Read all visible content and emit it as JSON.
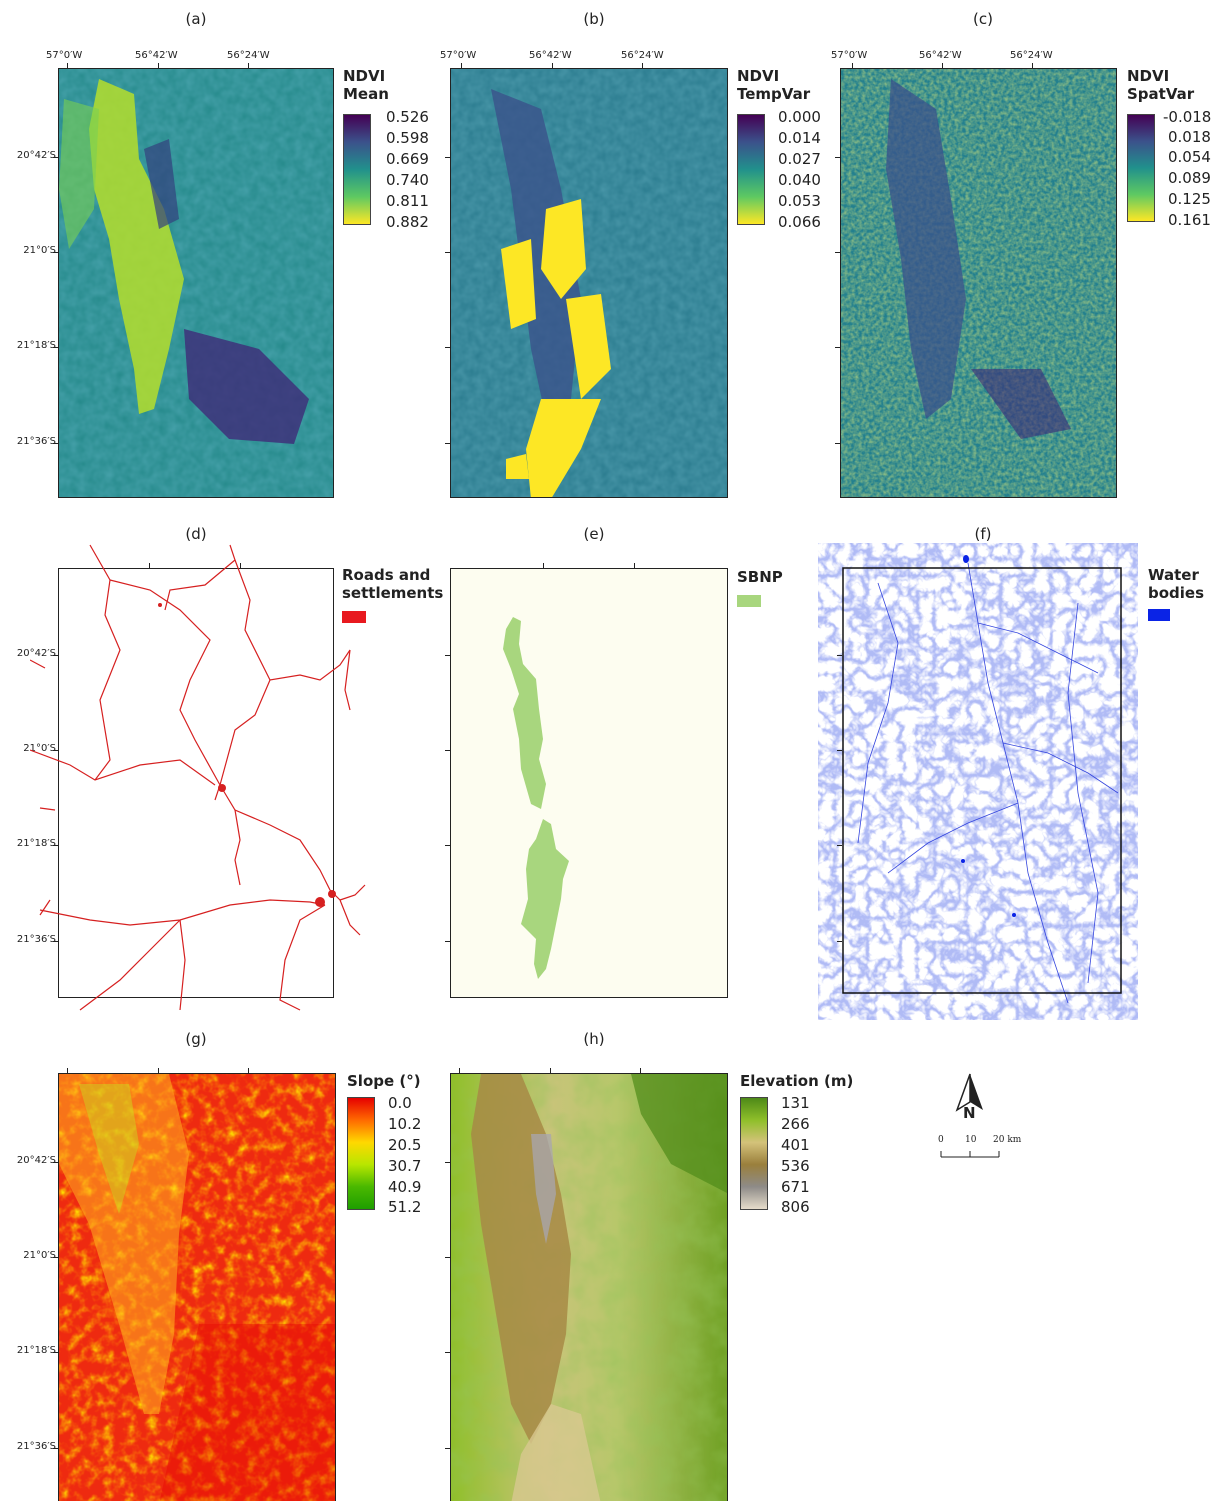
{
  "panels": {
    "a": {
      "label": "(a)",
      "legend_title": [
        "NDVI",
        "Mean"
      ],
      "ticks": [
        "0.526",
        "0.598",
        "0.669",
        "0.740",
        "0.811",
        "0.882"
      ]
    },
    "b": {
      "label": "(b)",
      "legend_title": [
        "NDVI",
        "TempVar"
      ],
      "ticks": [
        "0.000",
        "0.014",
        "0.027",
        "0.040",
        "0.053",
        "0.066"
      ]
    },
    "c": {
      "label": "(c)",
      "legend_title": [
        "NDVI",
        "SpatVar"
      ],
      "ticks": [
        "-0.018",
        "0.018",
        "0.054",
        "0.089",
        "0.125",
        "0.161"
      ]
    },
    "d": {
      "label": "(d)",
      "legend_title": [
        "Roads and",
        "settlements"
      ],
      "swatch_color": "#e8191f"
    },
    "e": {
      "label": "(e)",
      "legend_title": [
        "SBNP"
      ],
      "swatch_color": "#a8d67e"
    },
    "f": {
      "label": "(f)",
      "legend_title": [
        "Water",
        "bodies"
      ],
      "swatch_color": "#0a23e6"
    },
    "g": {
      "label": "(g)",
      "legend_title": [
        "Slope (°)"
      ],
      "ticks": [
        "0.0",
        "10.2",
        "20.5",
        "30.7",
        "40.9",
        "51.2"
      ]
    },
    "h": {
      "label": "(h)",
      "legend_title": [
        "Elevation (m)"
      ],
      "ticks": [
        "131",
        "266",
        "401",
        "536",
        "671",
        "806"
      ]
    }
  },
  "x_ticks": [
    "57°0′W",
    "56°42′W",
    "56°24′W"
  ],
  "y_ticks": [
    "20°42′S",
    "21°0′S",
    "21°18′S",
    "21°36′S"
  ],
  "north_arrow": {
    "letter": "N",
    "icon": "north-arrow-icon"
  },
  "scale_bar": {
    "labels": [
      "0",
      "10",
      "20 km"
    ]
  },
  "colors": {
    "viridis": [
      "#440154",
      "#3b528b",
      "#21918c",
      "#5ec962",
      "#fde725"
    ],
    "slope": [
      "#e60000",
      "#ff6a00",
      "#ffd800",
      "#b8e600",
      "#4ab800",
      "#1e9e00"
    ],
    "elevation": [
      "#4e8a18",
      "#8fbf2a",
      "#d4c27a",
      "#9a7f3c",
      "#8e8b88",
      "#e6dccb"
    ],
    "roads": "#d62020",
    "rivers": "#3344dd",
    "park_bg": "#fdfdf0"
  }
}
